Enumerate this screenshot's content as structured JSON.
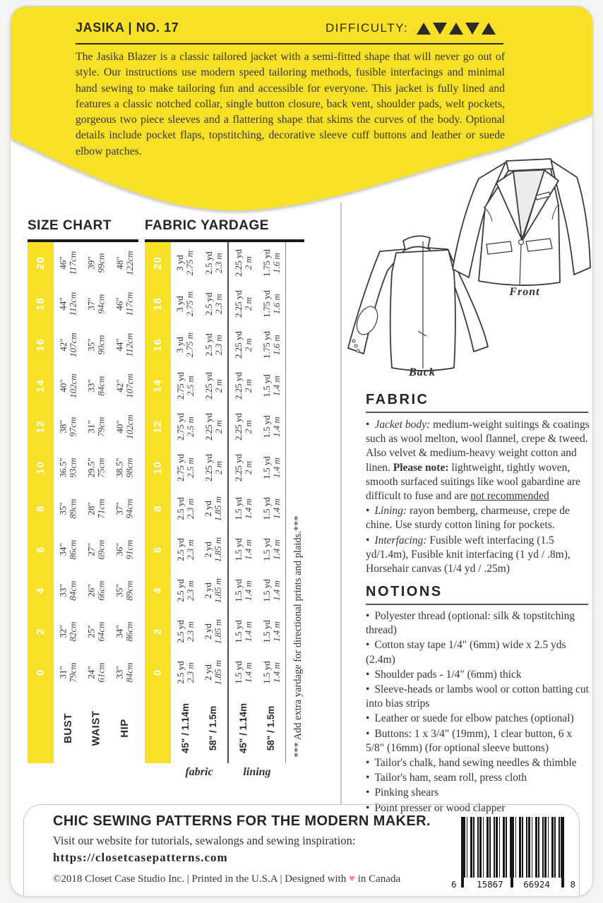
{
  "colors": {
    "accent_yellow": "#F6E126",
    "ink": "#2b2a28",
    "heart_pink": "#f0918e"
  },
  "header": {
    "title": "JASIKA | NO. 17",
    "difficulty_label": "DIFFICULTY:",
    "difficulty_icons": [
      "up",
      "down",
      "up",
      "down",
      "up"
    ]
  },
  "description": "The Jasika Blazer is a classic tailored jacket with a semi-fitted shape that will never go out of style. Our instructions use modern speed tailoring methods, fusible interfacings and minimal hand sewing to make tailoring fun and accessible for everyone. This jacket is fully lined and features a classic notched collar, single button closure, back vent, shoulder pads, welt pockets, gorgeous two piece sleeves and a flattering shape that skims the curves of the body. Optional details include pocket flaps, topstitching, decorative sleeve cuff buttons and leather or suede elbow patches.",
  "illustrations": {
    "front_label": "Front",
    "back_label": "Back"
  },
  "size_chart": {
    "title": "SIZE CHART",
    "sizes": [
      "20",
      "18",
      "16",
      "14",
      "12",
      "10",
      "8",
      "6",
      "4",
      "2",
      "0"
    ],
    "measurements": [
      {
        "label": "BUST",
        "values": [
          [
            "46\"",
            "117cm"
          ],
          [
            "44\"",
            "112cm"
          ],
          [
            "42\"",
            "107cm"
          ],
          [
            "40\"",
            "102cm"
          ],
          [
            "38\"",
            "97cm"
          ],
          [
            "36.5\"",
            "93cm"
          ],
          [
            "35\"",
            "89cm"
          ],
          [
            "34\"",
            "86cm"
          ],
          [
            "33\"",
            "84cm"
          ],
          [
            "32\"",
            "82cm"
          ],
          [
            "31\"",
            "79cm"
          ]
        ]
      },
      {
        "label": "WAIST",
        "values": [
          [
            "39\"",
            "99cm"
          ],
          [
            "37\"",
            "94cm"
          ],
          [
            "35\"",
            "90cm"
          ],
          [
            "33\"",
            "84cm"
          ],
          [
            "31\"",
            "79cm"
          ],
          [
            "29.5\"",
            "75cm"
          ],
          [
            "28\"",
            "71cm"
          ],
          [
            "27\"",
            "69cm"
          ],
          [
            "26\"",
            "66cm"
          ],
          [
            "25\"",
            "64cm"
          ],
          [
            "24\"",
            "61cm"
          ]
        ]
      },
      {
        "label": "HIP",
        "values": [
          [
            "48\"",
            "122cm"
          ],
          [
            "46\"",
            "117cm"
          ],
          [
            "44\"",
            "112cm"
          ],
          [
            "42\"",
            "107cm"
          ],
          [
            "40\"",
            "102cm"
          ],
          [
            "38.5\"",
            "98cm"
          ],
          [
            "37\"",
            "94cm"
          ],
          [
            "36\"",
            "91cm"
          ],
          [
            "35\"",
            "89cm"
          ],
          [
            "34\"",
            "86cm"
          ],
          [
            "33\"",
            "84cm"
          ]
        ]
      }
    ]
  },
  "fabric_yardage": {
    "title": "FABRIC YARDAGE",
    "sizes": [
      "20",
      "18",
      "16",
      "14",
      "12",
      "10",
      "8",
      "6",
      "4",
      "2",
      "0"
    ],
    "columns": [
      {
        "label": "45\" / 1.14m",
        "group": "fabric",
        "values": [
          [
            "3 yd",
            "2.75 m"
          ],
          [
            "3 yd",
            "2.75 m"
          ],
          [
            "3 yd",
            "2.75 m"
          ],
          [
            "2.75 yd",
            "2.5 m"
          ],
          [
            "2.75 yd",
            "2.5 m"
          ],
          [
            "2.75 yd",
            "2.5 m"
          ],
          [
            "2.5 yd",
            "2.3 m"
          ],
          [
            "2.5 yd",
            "2.3 m"
          ],
          [
            "2.5 yd",
            "2.3 m"
          ],
          [
            "2.5 yd",
            "2.3 m"
          ],
          [
            "2.5 yd",
            "2.3 m"
          ]
        ]
      },
      {
        "label": "58\" / 1.5m",
        "group": "fabric",
        "values": [
          [
            "2.5 yd",
            "2.3 m"
          ],
          [
            "2.5 yd",
            "2.3 m"
          ],
          [
            "2.5 yd",
            "2.3 m"
          ],
          [
            "2.25 yd",
            "2 m"
          ],
          [
            "2.25 yd",
            "2 m"
          ],
          [
            "2.25 yd",
            "2 m"
          ],
          [
            "2 yd",
            "1.85 m"
          ],
          [
            "2 yd",
            "1.85 m"
          ],
          [
            "2 yd",
            "1.85 m"
          ],
          [
            "2 yd",
            "1.85 m"
          ],
          [
            "2 yd",
            "1.85 m"
          ]
        ]
      },
      {
        "label": "45\" / 1.14m",
        "group": "lining",
        "values": [
          [
            "2.25 yd",
            "2 m"
          ],
          [
            "2.25 yd",
            "2 m"
          ],
          [
            "2.25 yd",
            "2 m"
          ],
          [
            "2.25 yd",
            "2 m"
          ],
          [
            "2.25 yd",
            "2 m"
          ],
          [
            "2.25 yd",
            "2 m"
          ],
          [
            "1.5 yd",
            "1.4 m"
          ],
          [
            "1.5 yd",
            "1.4 m"
          ],
          [
            "1.5 yd",
            "1.4 m"
          ],
          [
            "1.5 yd",
            "1.4 m"
          ],
          [
            "1.5 yd",
            "1.4 m"
          ]
        ]
      },
      {
        "label": "58\" / 1.5m",
        "group": "lining",
        "values": [
          [
            "1.75 yd",
            "1.6 m"
          ],
          [
            "1.75 yd",
            "1.6 m"
          ],
          [
            "1.75 yd",
            "1.6 m"
          ],
          [
            "1.5 yd",
            "1.4 m"
          ],
          [
            "1.5 yd",
            "1.4 m"
          ],
          [
            "1.5 yd",
            "1.4 m"
          ],
          [
            "1.5 yd",
            "1.4 m"
          ],
          [
            "1.5 yd",
            "1.4 m"
          ],
          [
            "1.5 yd",
            "1.4 m"
          ],
          [
            "1.5 yd",
            "1.4 m"
          ],
          [
            "1.5 yd",
            "1.4 m"
          ]
        ]
      }
    ],
    "group_labels": [
      "fabric",
      "lining"
    ],
    "note": "*** Add extra yardage for directional prints and plaids.***"
  },
  "fabric_section": {
    "title": "FABRIC",
    "bullets": [
      [
        {
          "t": "Jacket body:",
          "s": "i"
        },
        {
          "t": " medium-weight suitings & coatings such as wool melton, wool flannel, crepe & tweed. Also velvet & medium-heavy weight cotton and linen. ",
          "s": ""
        },
        {
          "t": "Please note:",
          "s": "b"
        },
        {
          "t": " lightweight, tightly woven, smooth surfaced suitings like wool gabardine are difficult to fuse  and are ",
          "s": ""
        },
        {
          "t": "not recommended",
          "s": "u"
        }
      ],
      [
        {
          "t": "Lining:",
          "s": "i"
        },
        {
          "t": " rayon bemberg,  charmeuse, crepe de chine. Use sturdy cotton lining for pockets.",
          "s": ""
        }
      ],
      [
        {
          "t": "Interfacing:",
          "s": "i"
        },
        {
          "t": " Fusible weft interfacing (1.5 yd/1.4m), Fusible knit interfacing (1 yd / .8m), Horsehair canvas (1/4 yd / .25m)",
          "s": ""
        }
      ]
    ]
  },
  "notions_section": {
    "title": "NOTIONS",
    "items": [
      "Polyester thread (optional: silk & topstitching thread)",
      "Cotton stay tape 1/4\" (6mm) wide x 2.5 yds (2.4m)",
      "Shoulder pads - 1/4\" (6mm) thick",
      "Sleeve-heads or lambs wool or cotton batting cut into bias strips",
      "Leather or suede for elbow patches (optional)",
      "Buttons: 1 x 3/4\" (19mm), 1 clear button, 6 x 5/8\" (16mm) (for optional sleeve buttons)",
      "Tailor's chalk, hand sewing needles & thimble",
      "Tailor's ham, seam roll, press cloth",
      "Pinking shears",
      "Point presser or wood clapper"
    ]
  },
  "footer": {
    "tagline": "CHIC SEWING PATTERNS FOR THE MODERN MAKER.",
    "visit": "Visit our website for tutorials, sewalongs and sewing inspiration:",
    "url": "https://closetcasepatterns.com",
    "copyright_segments": [
      {
        "t": "©2018 Closet Case Studio Inc.  |  Printed in the U.S.A  |  Designed with ",
        "s": ""
      },
      {
        "t": "♥",
        "s": "heart"
      },
      {
        "t": " in Canada",
        "s": ""
      }
    ],
    "barcode_digits": [
      "6",
      "15867",
      "66924",
      "8"
    ]
  }
}
